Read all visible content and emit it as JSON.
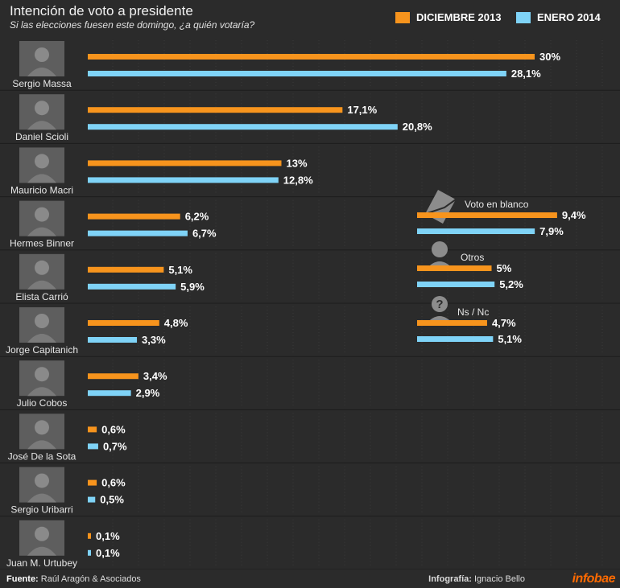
{
  "header": {
    "title": "Intención de voto a presidente",
    "subtitle": "Si las elecciones fuesen este domingo, ¿a quién votaría?"
  },
  "legend": [
    {
      "label": "DICIEMBRE 2013",
      "color": "#f7941d"
    },
    {
      "label": "ENERO 2014",
      "color": "#7fd3f7"
    }
  ],
  "colors": {
    "series_dec": "#f7941d",
    "series_jan": "#7fd3f7",
    "background": "#2b2b2b",
    "grid": "#3a3a3a"
  },
  "chart_data": {
    "type": "bar",
    "orientation": "horizontal",
    "title": "Intención de voto a presidente",
    "subtitle": "Si las elecciones fuesen este domingo, ¿a quién votaría?",
    "categories": [
      "Sergio Massa",
      "Daniel Scioli",
      "Mauricio Macri",
      "Hermes Binner",
      "Elista Carrió",
      "Jorge Capitanich",
      "Julio Cobos",
      "José De la Sota",
      "Sergio Uribarri",
      "Juan M. Urtubey"
    ],
    "series": [
      {
        "name": "DICIEMBRE 2013",
        "color": "#f7941d",
        "values": [
          30,
          17.1,
          13,
          6.2,
          5.1,
          4.8,
          3.4,
          0.6,
          0.6,
          0.1
        ],
        "labels": [
          "30%",
          "17,1%",
          "13%",
          "6,2%",
          "5,1%",
          "4,8%",
          "3,4%",
          "0,6%",
          "0,6%",
          "0,1%"
        ]
      },
      {
        "name": "ENERO 2014",
        "color": "#7fd3f7",
        "values": [
          28.1,
          20.8,
          12.8,
          6.7,
          5.9,
          3.3,
          2.9,
          0.7,
          0.5,
          0.1
        ],
        "labels": [
          "28,1%",
          "20,8%",
          "12,8%",
          "6,7%",
          "5,9%",
          "3,3%",
          "2,9%",
          "0,7%",
          "0,5%",
          "0,1%"
        ]
      }
    ],
    "others": [
      {
        "label": "Voto en blanco",
        "icon": "envelope-icon",
        "values": [
          9.4,
          7.9
        ],
        "labels": [
          "9,4%",
          "7,9%"
        ]
      },
      {
        "label": "Otros",
        "icon": "person-icon",
        "values": [
          5,
          5.2
        ],
        "labels": [
          "5%",
          "5,2%"
        ]
      },
      {
        "label": "Ns / Nc",
        "icon": "question-person-icon",
        "values": [
          4.7,
          5.1
        ],
        "labels": [
          "4,7%",
          "5,1%"
        ]
      }
    ],
    "xlim": [
      0,
      30
    ],
    "grid": false,
    "legend_position": "top-right"
  },
  "footer": {
    "source_label": "Fuente:",
    "source": "Raúl Aragón & Asociados",
    "credit_label": "Infografía:",
    "credit": "Ignacio Bello",
    "brand": "infobae"
  }
}
